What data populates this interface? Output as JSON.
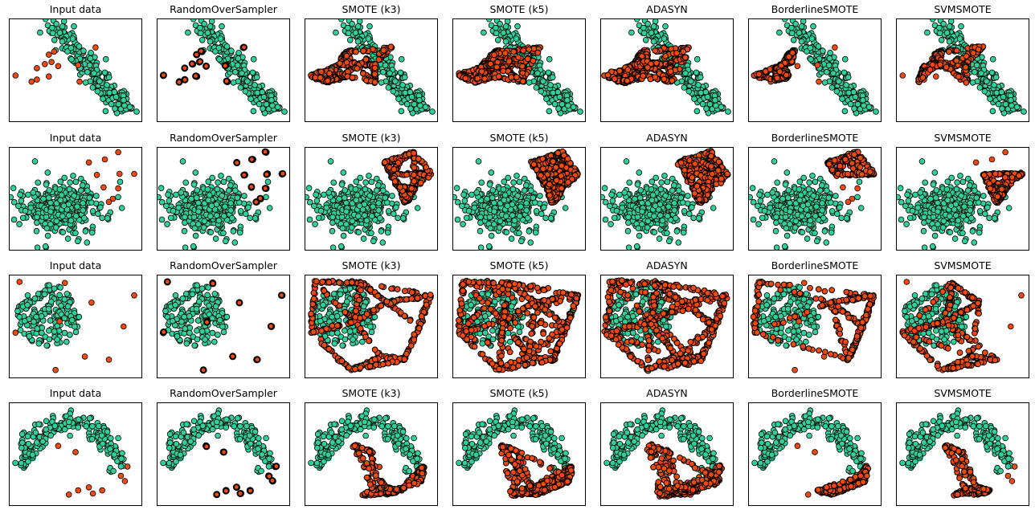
{
  "figure": {
    "colors": {
      "majority": "#2fd09a",
      "minority": "#f04a10",
      "edge": "#000000"
    }
  },
  "chart_data": {
    "type": "scatter",
    "xaxis": {
      "ticks": false
    },
    "yaxis": {
      "ticks": false
    },
    "grid": false,
    "legend": null,
    "rows": [
      {
        "dataset": "row-1",
        "panels": [
          {
            "title": "Input data"
          },
          {
            "title": "RandomOverSampler"
          },
          {
            "title": "SMOTE (k3)"
          },
          {
            "title": "SMOTE (k5)"
          },
          {
            "title": "ADASYN"
          },
          {
            "title": "BorderlineSMOTE"
          },
          {
            "title": "SVMSMOTE"
          }
        ]
      },
      {
        "dataset": "row-2",
        "panels": [
          {
            "title": "Input data"
          },
          {
            "title": "RandomOverSampler"
          },
          {
            "title": "SMOTE (k3)"
          },
          {
            "title": "SMOTE (k5)"
          },
          {
            "title": "ADASYN"
          },
          {
            "title": "BorderlineSMOTE"
          },
          {
            "title": "SVMSMOTE"
          }
        ]
      },
      {
        "dataset": "row-3",
        "panels": [
          {
            "title": "Input data"
          },
          {
            "title": "RandomOverSampler"
          },
          {
            "title": "SMOTE (k3)"
          },
          {
            "title": "SMOTE (k5)"
          },
          {
            "title": "ADASYN"
          },
          {
            "title": "BorderlineSMOTE"
          },
          {
            "title": "SVMSMOTE"
          }
        ]
      },
      {
        "dataset": "row-4",
        "panels": [
          {
            "title": "Input data"
          },
          {
            "title": "RandomOverSampler"
          },
          {
            "title": "SMOTE (k3)"
          },
          {
            "title": "SMOTE (k5)"
          },
          {
            "title": "ADASYN"
          },
          {
            "title": "BorderlineSMOTE"
          },
          {
            "title": "SVMSMOTE"
          }
        ]
      }
    ]
  }
}
